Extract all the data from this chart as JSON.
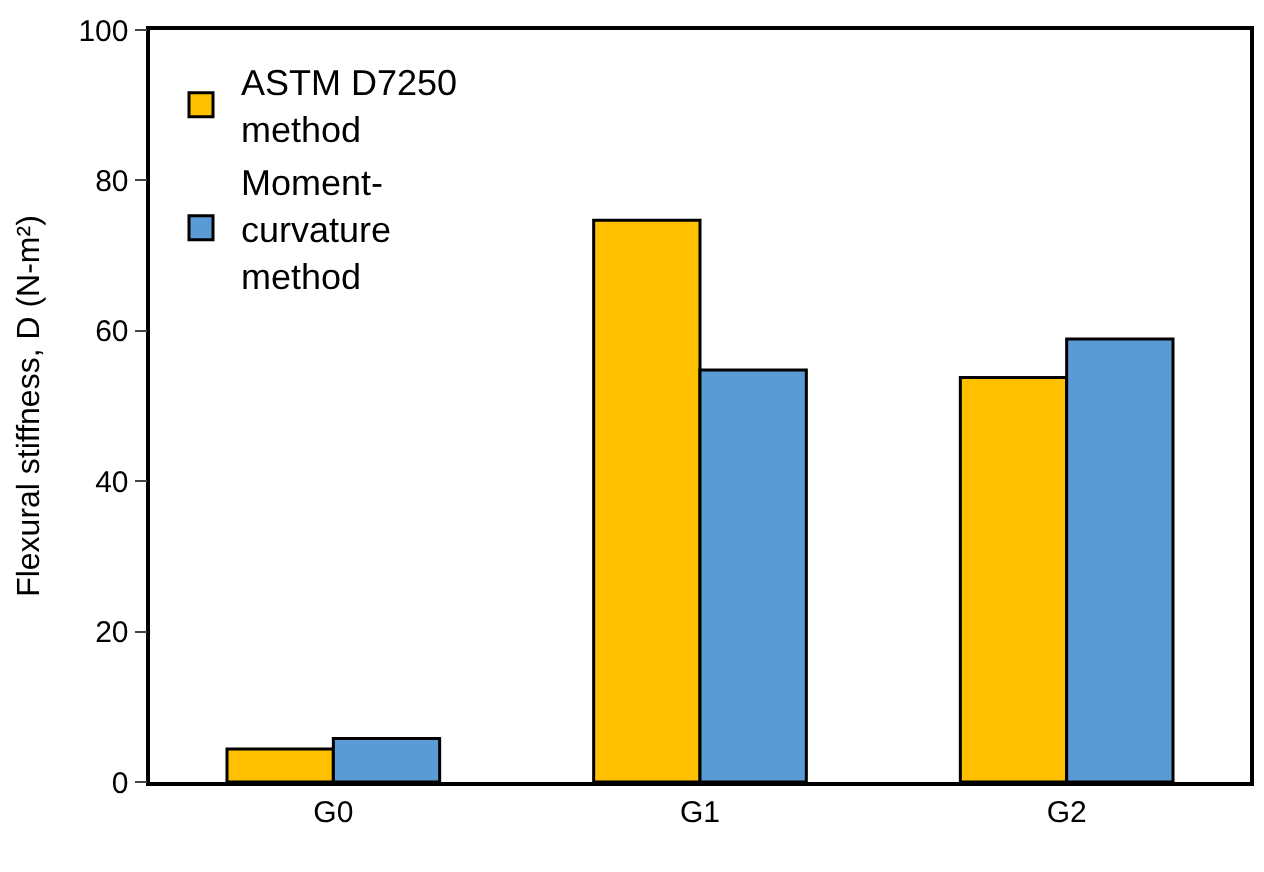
{
  "chart_data": {
    "type": "bar",
    "ylabel": "Flexural stiffness, D (N-m²)",
    "categories": [
      "G0",
      "G1",
      "G2"
    ],
    "series": [
      {
        "name": "ASTM D7250 method",
        "color": "#ffc000",
        "values": [
          4.4,
          74.7,
          53.8
        ]
      },
      {
        "name": "Moment-curvature method",
        "color": "#5b9bd5",
        "values": [
          5.8,
          54.8,
          58.9
        ]
      }
    ],
    "ylim": [
      0,
      100
    ],
    "yticks": [
      0,
      20,
      40,
      60,
      80,
      100
    ],
    "grid": false,
    "legend": "top left"
  }
}
